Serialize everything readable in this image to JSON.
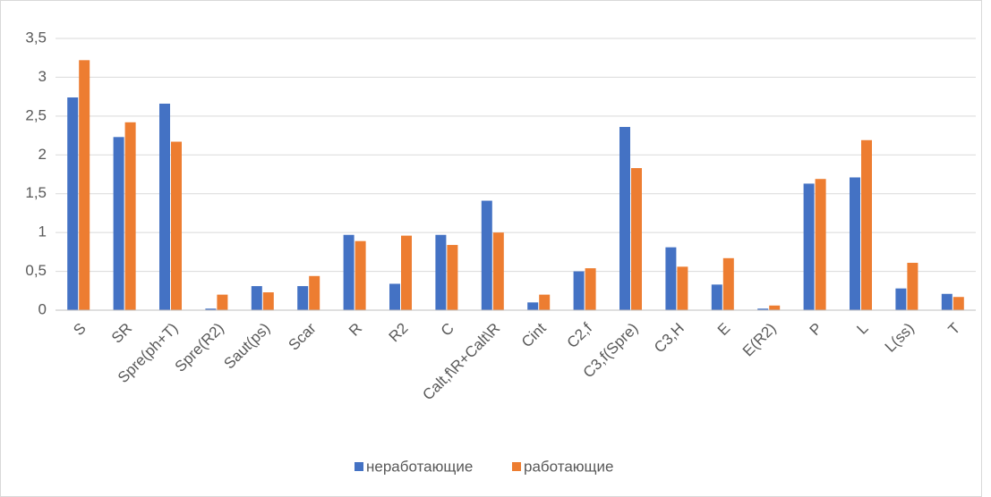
{
  "chart_data": {
    "type": "bar",
    "categories": [
      "S",
      "SR",
      "Spre(ph+T)",
      "Spre(R2)",
      "Saut(ps)",
      "Scar",
      "R",
      "R2",
      "C",
      "Calt,f\\R+Calt\\R",
      "Cint",
      "C2,f",
      "C3,f(Spre)",
      "C3,H",
      "E",
      "E(R2)",
      "P",
      "L",
      "L(ss)",
      "T"
    ],
    "series": [
      {
        "name": "неработающие",
        "color": "#4472c4",
        "values": [
          2.74,
          2.23,
          2.66,
          0.02,
          0.31,
          0.31,
          0.97,
          0.34,
          0.97,
          1.41,
          0.1,
          0.5,
          2.36,
          0.81,
          0.33,
          0.02,
          1.63,
          1.71,
          0.28,
          0.21
        ]
      },
      {
        "name": "работающие",
        "color": "#ed7d31",
        "values": [
          3.22,
          2.42,
          2.17,
          0.2,
          0.23,
          0.44,
          0.89,
          0.96,
          0.84,
          1.0,
          0.2,
          0.54,
          1.83,
          0.56,
          0.67,
          0.06,
          1.69,
          2.19,
          0.61,
          0.17
        ]
      }
    ],
    "ylim": [
      0,
      3.5
    ],
    "yticks": [
      0,
      {
        "value": 0.5,
        "label": "0,5"
      },
      1,
      {
        "value": 1.5,
        "label": "1,5"
      },
      2,
      {
        "value": 2.5,
        "label": "2,5"
      },
      3,
      {
        "value": 3.5,
        "label": "3,5"
      }
    ],
    "grid": true,
    "legend": "bottom"
  }
}
